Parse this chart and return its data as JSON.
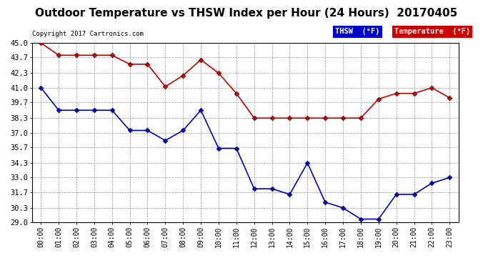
{
  "title": "Outdoor Temperature vs THSW Index per Hour (24 Hours)  20170405",
  "copyright": "Copyright 2017 Cartronics.com",
  "hours": [
    "00:00",
    "01:00",
    "02:00",
    "03:00",
    "04:00",
    "05:00",
    "06:00",
    "07:00",
    "08:00",
    "09:00",
    "10:00",
    "11:00",
    "12:00",
    "13:00",
    "14:00",
    "15:00",
    "16:00",
    "17:00",
    "18:00",
    "19:00",
    "20:00",
    "21:00",
    "22:00",
    "23:00"
  ],
  "thsw": [
    41.0,
    39.0,
    39.0,
    39.0,
    39.0,
    37.2,
    37.2,
    36.3,
    37.2,
    39.0,
    35.6,
    35.6,
    32.0,
    32.0,
    31.5,
    34.3,
    30.8,
    30.3,
    29.3,
    29.3,
    31.5,
    31.5,
    32.5,
    33.0
  ],
  "temperature": [
    45.0,
    43.9,
    43.9,
    43.9,
    43.9,
    43.1,
    43.1,
    41.1,
    42.1,
    43.5,
    42.3,
    40.5,
    38.3,
    38.3,
    38.3,
    38.3,
    38.3,
    38.3,
    38.3,
    40.0,
    40.5,
    40.5,
    41.0,
    40.1
  ],
  "thsw_color": "#0000cc",
  "temp_color": "#cc0000",
  "bg_color": "#ffffff",
  "grid_color": "#999999",
  "ylim_min": 29.0,
  "ylim_max": 45.0,
  "yticks": [
    29.0,
    30.3,
    31.7,
    33.0,
    34.3,
    35.7,
    37.0,
    38.3,
    39.7,
    41.0,
    42.3,
    43.7,
    45.0
  ],
  "title_fontsize": 11,
  "legend_thsw_label": "THSW  (°F)",
  "legend_temp_label": "Temperature  (°F)"
}
